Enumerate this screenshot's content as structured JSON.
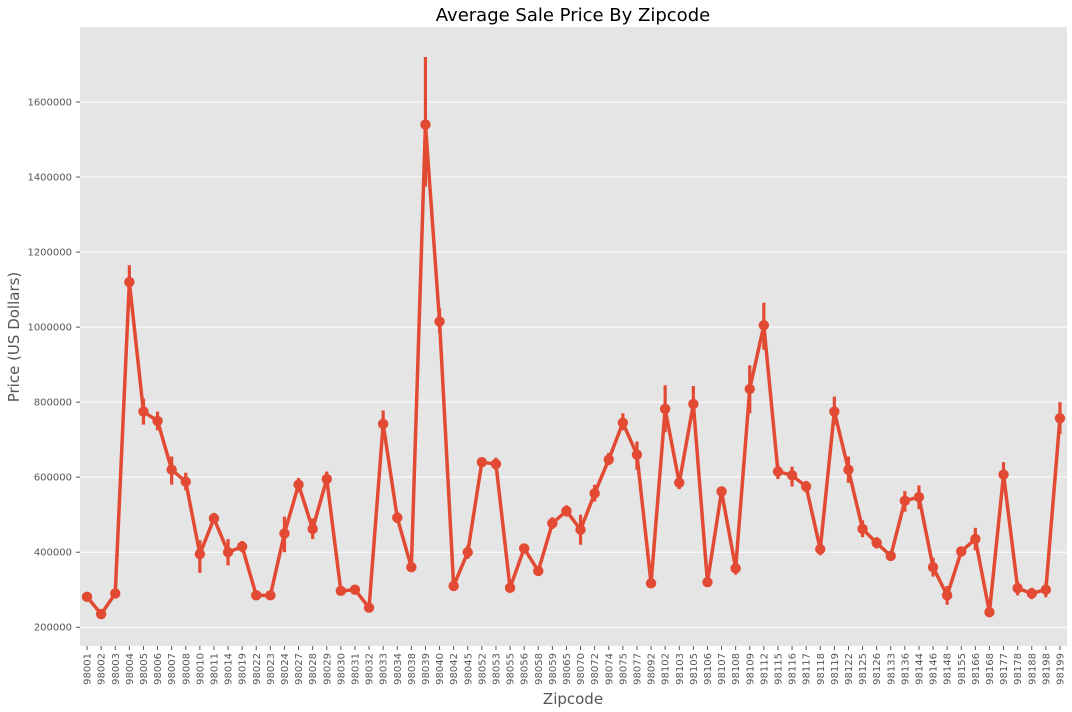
{
  "chart_data": {
    "type": "line",
    "title": "Average Sale Price By Zipcode",
    "xlabel": "Zipcode",
    "ylabel": "Price (US Dollars)",
    "ylim": [
      150000,
      1800000
    ],
    "yticks": [
      200000,
      400000,
      600000,
      800000,
      1000000,
      1200000,
      1400000,
      1600000
    ],
    "grid": true,
    "colors": {
      "line": "#E24A33",
      "background": "#E5E5E5",
      "grid": "#FFFFFF"
    },
    "categories": [
      "98001",
      "98002",
      "98003",
      "98004",
      "98005",
      "98006",
      "98007",
      "98008",
      "98010",
      "98011",
      "98014",
      "98019",
      "98022",
      "98023",
      "98024",
      "98027",
      "98028",
      "98029",
      "98030",
      "98031",
      "98032",
      "98033",
      "98034",
      "98038",
      "98039",
      "98040",
      "98042",
      "98045",
      "98052",
      "98053",
      "98055",
      "98056",
      "98058",
      "98059",
      "98065",
      "98070",
      "98072",
      "98074",
      "98075",
      "98077",
      "98092",
      "98102",
      "98103",
      "98105",
      "98106",
      "98107",
      "98108",
      "98109",
      "98112",
      "98115",
      "98116",
      "98117",
      "98118",
      "98119",
      "98122",
      "98125",
      "98126",
      "98133",
      "98136",
      "98144",
      "98146",
      "98148",
      "98155",
      "98166",
      "98168",
      "98177",
      "98178",
      "98188",
      "98198",
      "98199"
    ],
    "values": [
      281000,
      235000,
      290000,
      1120000,
      775000,
      750000,
      620000,
      588000,
      395000,
      490000,
      400000,
      415000,
      285000,
      285000,
      450000,
      580000,
      462000,
      595000,
      297000,
      300000,
      252000,
      742000,
      492000,
      360000,
      1540000,
      1015000,
      310000,
      400000,
      640000,
      635000,
      305000,
      410000,
      350000,
      477000,
      510000,
      460000,
      557000,
      647000,
      745000,
      660000,
      317000,
      782000,
      585000,
      795000,
      320000,
      562000,
      357000,
      835000,
      1005000,
      615000,
      605000,
      575000,
      408000,
      775000,
      620000,
      462000,
      425000,
      390000,
      537000,
      547000,
      360000,
      285000,
      402000,
      435000,
      240000,
      607000,
      304000,
      290000,
      300000,
      757000
    ],
    "error_low": [
      272000,
      228000,
      281000,
      1080000,
      740000,
      725000,
      580000,
      565000,
      345000,
      478000,
      365000,
      400000,
      277000,
      277000,
      400000,
      560000,
      435000,
      578000,
      290000,
      292000,
      242000,
      705000,
      478000,
      350000,
      1375000,
      985000,
      302000,
      382000,
      628000,
      618000,
      293000,
      398000,
      340000,
      462000,
      495000,
      420000,
      535000,
      632000,
      725000,
      620000,
      305000,
      720000,
      568000,
      755000,
      308000,
      552000,
      340000,
      770000,
      940000,
      595000,
      575000,
      560000,
      392000,
      740000,
      585000,
      440000,
      410000,
      380000,
      508000,
      515000,
      335000,
      260000,
      390000,
      405000,
      228000,
      575000,
      285000,
      275000,
      280000,
      715000
    ],
    "error_high": [
      290000,
      243000,
      299000,
      1165000,
      810000,
      775000,
      655000,
      612000,
      432000,
      505000,
      435000,
      430000,
      293000,
      293000,
      495000,
      598000,
      490000,
      615000,
      305000,
      308000,
      262000,
      778000,
      508000,
      370000,
      1720000,
      1050000,
      318000,
      418000,
      652000,
      652000,
      317000,
      422000,
      360000,
      493000,
      525000,
      500000,
      580000,
      665000,
      770000,
      695000,
      329000,
      845000,
      602000,
      843000,
      332000,
      574000,
      375000,
      898000,
      1065000,
      632000,
      628000,
      590000,
      422000,
      815000,
      655000,
      485000,
      440000,
      401000,
      563000,
      578000,
      385000,
      310000,
      412000,
      465000,
      253000,
      640000,
      320000,
      305000,
      318000,
      800000
    ]
  }
}
